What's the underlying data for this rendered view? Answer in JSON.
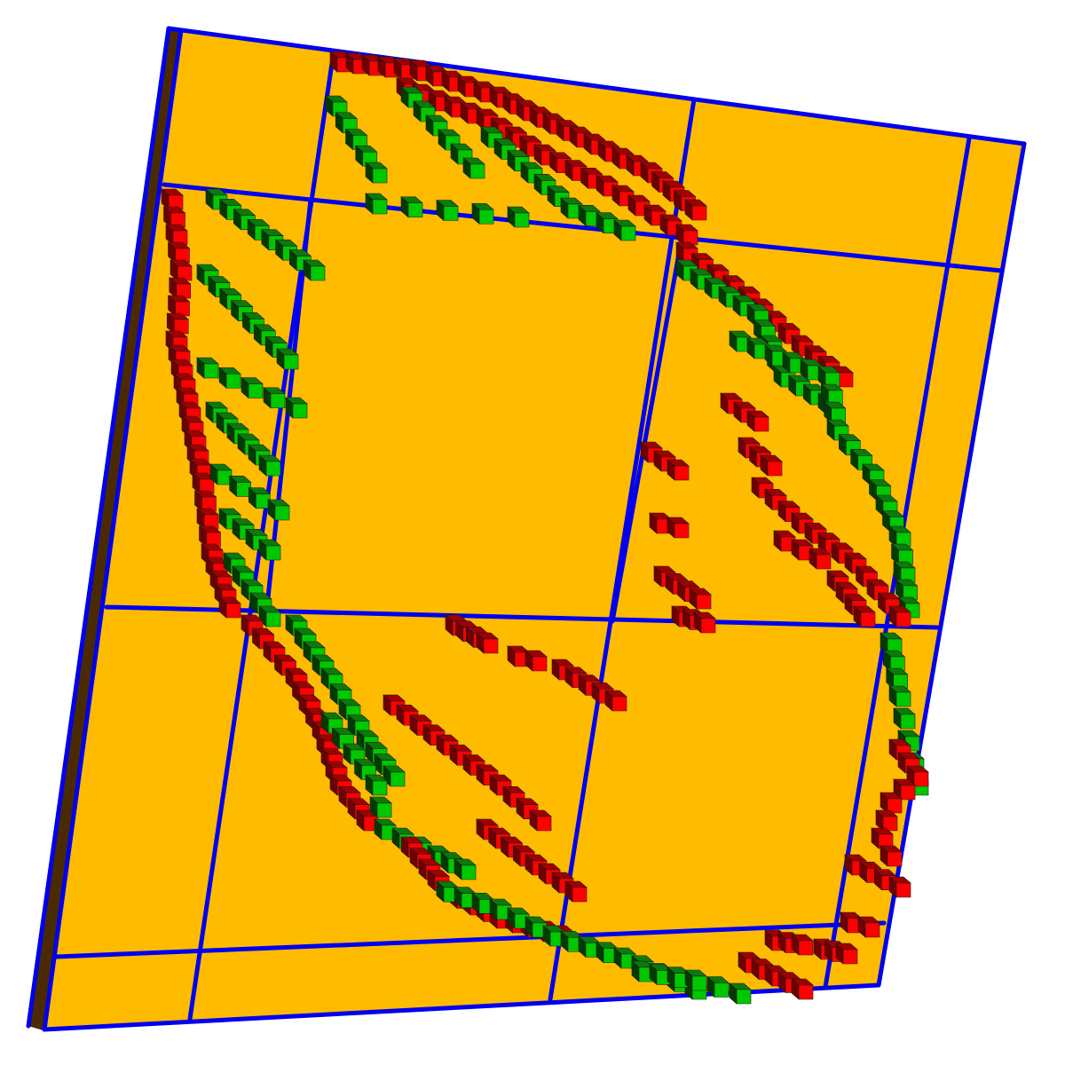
{
  "scene": {
    "background": "#ffffff",
    "plate_color": "#ffbb00",
    "plate_edge_color": "#4a2a00",
    "grid_line_color": "#0000ee",
    "cube_colors": {
      "red": {
        "front": "#ff0000",
        "side": "#6e0000",
        "top": "#a00000"
      },
      "green": {
        "front": "#00c800",
        "side": "#003c00",
        "top": "#0a7a0a"
      }
    }
  }
}
